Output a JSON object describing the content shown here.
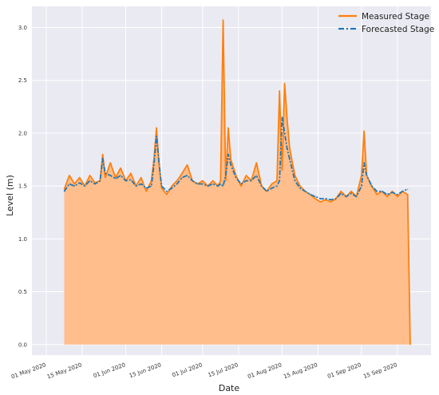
{
  "chart_data": {
    "type": "line",
    "xlabel": "Date",
    "ylabel": "Level (m)",
    "ylim": [
      -0.1,
      3.2
    ],
    "yticks": [
      0.0,
      0.5,
      1.0,
      1.5,
      2.0,
      2.5,
      3.0
    ],
    "ytick_labels": [
      "0.0",
      "0.5",
      "1.0",
      "1.5",
      "2.0",
      "2.5",
      "3.0"
    ],
    "xlim": [
      "2020-05-01",
      "2020-09-25"
    ],
    "xticks": [
      "2020-05-01",
      "2020-05-15",
      "2020-06-01",
      "2020-06-15",
      "2020-07-01",
      "2020-07-15",
      "2020-08-01",
      "2020-08-15",
      "2020-09-01",
      "2020-09-15"
    ],
    "xtick_labels": [
      "01 May 2020",
      "15 May 2020",
      "01 Jun 2020",
      "15 Jun 2020",
      "01 Jul 2020",
      "15 Jul 2020",
      "01 Aug 2020",
      "15 Aug 2020",
      "01 Sep 2020",
      "15 Sep 2020"
    ],
    "grid": true,
    "legend_position": "top-right",
    "colors": {
      "measured": "#ff7f0e",
      "forecast": "#1f77b4",
      "fill": "#ffbe8c",
      "background": "#eaeaf2"
    },
    "series": [
      {
        "name": "Measured Stage",
        "style": "solid line with filled area below",
        "points": [
          [
            "2020-05-08",
            1.47
          ],
          [
            "2020-05-10",
            1.6
          ],
          [
            "2020-05-12",
            1.52
          ],
          [
            "2020-05-14",
            1.58
          ],
          [
            "2020-05-16",
            1.5
          ],
          [
            "2020-05-18",
            1.6
          ],
          [
            "2020-05-20",
            1.53
          ],
          [
            "2020-05-22",
            1.55
          ],
          [
            "2020-05-23",
            1.8
          ],
          [
            "2020-05-24",
            1.58
          ],
          [
            "2020-05-26",
            1.72
          ],
          [
            "2020-05-28",
            1.58
          ],
          [
            "2020-05-30",
            1.67
          ],
          [
            "2020-06-01",
            1.55
          ],
          [
            "2020-06-03",
            1.62
          ],
          [
            "2020-06-05",
            1.5
          ],
          [
            "2020-06-07",
            1.58
          ],
          [
            "2020-06-09",
            1.45
          ],
          [
            "2020-06-11",
            1.55
          ],
          [
            "2020-06-12",
            1.75
          ],
          [
            "2020-06-13",
            2.05
          ],
          [
            "2020-06-14",
            1.7
          ],
          [
            "2020-06-15",
            1.48
          ],
          [
            "2020-06-17",
            1.42
          ],
          [
            "2020-06-19",
            1.5
          ],
          [
            "2020-06-21",
            1.55
          ],
          [
            "2020-06-23",
            1.62
          ],
          [
            "2020-06-25",
            1.7
          ],
          [
            "2020-06-27",
            1.55
          ],
          [
            "2020-06-29",
            1.52
          ],
          [
            "2020-07-01",
            1.55
          ],
          [
            "2020-07-03",
            1.5
          ],
          [
            "2020-07-05",
            1.55
          ],
          [
            "2020-07-07",
            1.5
          ],
          [
            "2020-07-08",
            1.55
          ],
          [
            "2020-07-09",
            3.07
          ],
          [
            "2020-07-10",
            1.55
          ],
          [
            "2020-07-11",
            2.05
          ],
          [
            "2020-07-12",
            1.75
          ],
          [
            "2020-07-14",
            1.6
          ],
          [
            "2020-07-16",
            1.5
          ],
          [
            "2020-07-18",
            1.6
          ],
          [
            "2020-07-20",
            1.55
          ],
          [
            "2020-07-22",
            1.72
          ],
          [
            "2020-07-24",
            1.5
          ],
          [
            "2020-07-26",
            1.45
          ],
          [
            "2020-07-28",
            1.52
          ],
          [
            "2020-07-30",
            1.55
          ],
          [
            "2020-07-31",
            2.4
          ],
          [
            "2020-08-01",
            1.65
          ],
          [
            "2020-08-02",
            2.47
          ],
          [
            "2020-08-03",
            2.12
          ],
          [
            "2020-08-04",
            1.85
          ],
          [
            "2020-08-06",
            1.6
          ],
          [
            "2020-08-08",
            1.5
          ],
          [
            "2020-08-10",
            1.45
          ],
          [
            "2020-08-12",
            1.42
          ],
          [
            "2020-08-14",
            1.38
          ],
          [
            "2020-08-16",
            1.35
          ],
          [
            "2020-08-18",
            1.37
          ],
          [
            "2020-08-20",
            1.35
          ],
          [
            "2020-08-22",
            1.38
          ],
          [
            "2020-08-24",
            1.45
          ],
          [
            "2020-08-26",
            1.4
          ],
          [
            "2020-08-28",
            1.45
          ],
          [
            "2020-08-30",
            1.4
          ],
          [
            "2020-09-01",
            1.6
          ],
          [
            "2020-09-02",
            2.02
          ],
          [
            "2020-09-03",
            1.6
          ],
          [
            "2020-09-05",
            1.5
          ],
          [
            "2020-09-07",
            1.42
          ],
          [
            "2020-09-09",
            1.45
          ],
          [
            "2020-09-11",
            1.4
          ],
          [
            "2020-09-13",
            1.45
          ],
          [
            "2020-09-15",
            1.4
          ],
          [
            "2020-09-17",
            1.45
          ],
          [
            "2020-09-19",
            1.42
          ],
          [
            "2020-09-20",
            0.0
          ]
        ]
      },
      {
        "name": "Forecasted Stage",
        "style": "dash-dot line",
        "points": [
          [
            "2020-05-08",
            1.45
          ],
          [
            "2020-05-10",
            1.52
          ],
          [
            "2020-05-12",
            1.5
          ],
          [
            "2020-05-14",
            1.53
          ],
          [
            "2020-05-16",
            1.5
          ],
          [
            "2020-05-18",
            1.55
          ],
          [
            "2020-05-20",
            1.52
          ],
          [
            "2020-05-22",
            1.55
          ],
          [
            "2020-05-23",
            1.76
          ],
          [
            "2020-05-24",
            1.62
          ],
          [
            "2020-05-26",
            1.6
          ],
          [
            "2020-05-28",
            1.57
          ],
          [
            "2020-05-30",
            1.6
          ],
          [
            "2020-06-01",
            1.55
          ],
          [
            "2020-06-03",
            1.56
          ],
          [
            "2020-06-05",
            1.5
          ],
          [
            "2020-06-07",
            1.52
          ],
          [
            "2020-06-09",
            1.48
          ],
          [
            "2020-06-11",
            1.5
          ],
          [
            "2020-06-12",
            1.7
          ],
          [
            "2020-06-13",
            1.97
          ],
          [
            "2020-06-14",
            1.72
          ],
          [
            "2020-06-15",
            1.5
          ],
          [
            "2020-06-17",
            1.45
          ],
          [
            "2020-06-19",
            1.48
          ],
          [
            "2020-06-21",
            1.52
          ],
          [
            "2020-06-23",
            1.58
          ],
          [
            "2020-06-25",
            1.6
          ],
          [
            "2020-06-27",
            1.55
          ],
          [
            "2020-06-29",
            1.52
          ],
          [
            "2020-07-01",
            1.52
          ],
          [
            "2020-07-03",
            1.5
          ],
          [
            "2020-07-05",
            1.52
          ],
          [
            "2020-07-07",
            1.5
          ],
          [
            "2020-07-08",
            1.52
          ],
          [
            "2020-07-09",
            1.5
          ],
          [
            "2020-07-10",
            1.6
          ],
          [
            "2020-07-11",
            1.8
          ],
          [
            "2020-07-12",
            1.7
          ],
          [
            "2020-07-14",
            1.58
          ],
          [
            "2020-07-16",
            1.52
          ],
          [
            "2020-07-18",
            1.55
          ],
          [
            "2020-07-20",
            1.55
          ],
          [
            "2020-07-22",
            1.6
          ],
          [
            "2020-07-24",
            1.5
          ],
          [
            "2020-07-26",
            1.45
          ],
          [
            "2020-07-28",
            1.48
          ],
          [
            "2020-07-30",
            1.5
          ],
          [
            "2020-07-31",
            1.55
          ],
          [
            "2020-08-01",
            2.15
          ],
          [
            "2020-08-02",
            2.0
          ],
          [
            "2020-08-03",
            1.85
          ],
          [
            "2020-08-04",
            1.75
          ],
          [
            "2020-08-06",
            1.55
          ],
          [
            "2020-08-08",
            1.48
          ],
          [
            "2020-08-10",
            1.45
          ],
          [
            "2020-08-12",
            1.42
          ],
          [
            "2020-08-14",
            1.4
          ],
          [
            "2020-08-16",
            1.38
          ],
          [
            "2020-08-18",
            1.38
          ],
          [
            "2020-08-20",
            1.37
          ],
          [
            "2020-08-22",
            1.38
          ],
          [
            "2020-08-24",
            1.43
          ],
          [
            "2020-08-26",
            1.4
          ],
          [
            "2020-08-28",
            1.43
          ],
          [
            "2020-08-30",
            1.4
          ],
          [
            "2020-09-01",
            1.5
          ],
          [
            "2020-09-02",
            1.72
          ],
          [
            "2020-09-03",
            1.6
          ],
          [
            "2020-09-05",
            1.5
          ],
          [
            "2020-09-07",
            1.45
          ],
          [
            "2020-09-09",
            1.45
          ],
          [
            "2020-09-11",
            1.42
          ],
          [
            "2020-09-13",
            1.44
          ],
          [
            "2020-09-15",
            1.42
          ],
          [
            "2020-09-17",
            1.45
          ],
          [
            "2020-09-19",
            1.47
          ]
        ]
      }
    ]
  }
}
